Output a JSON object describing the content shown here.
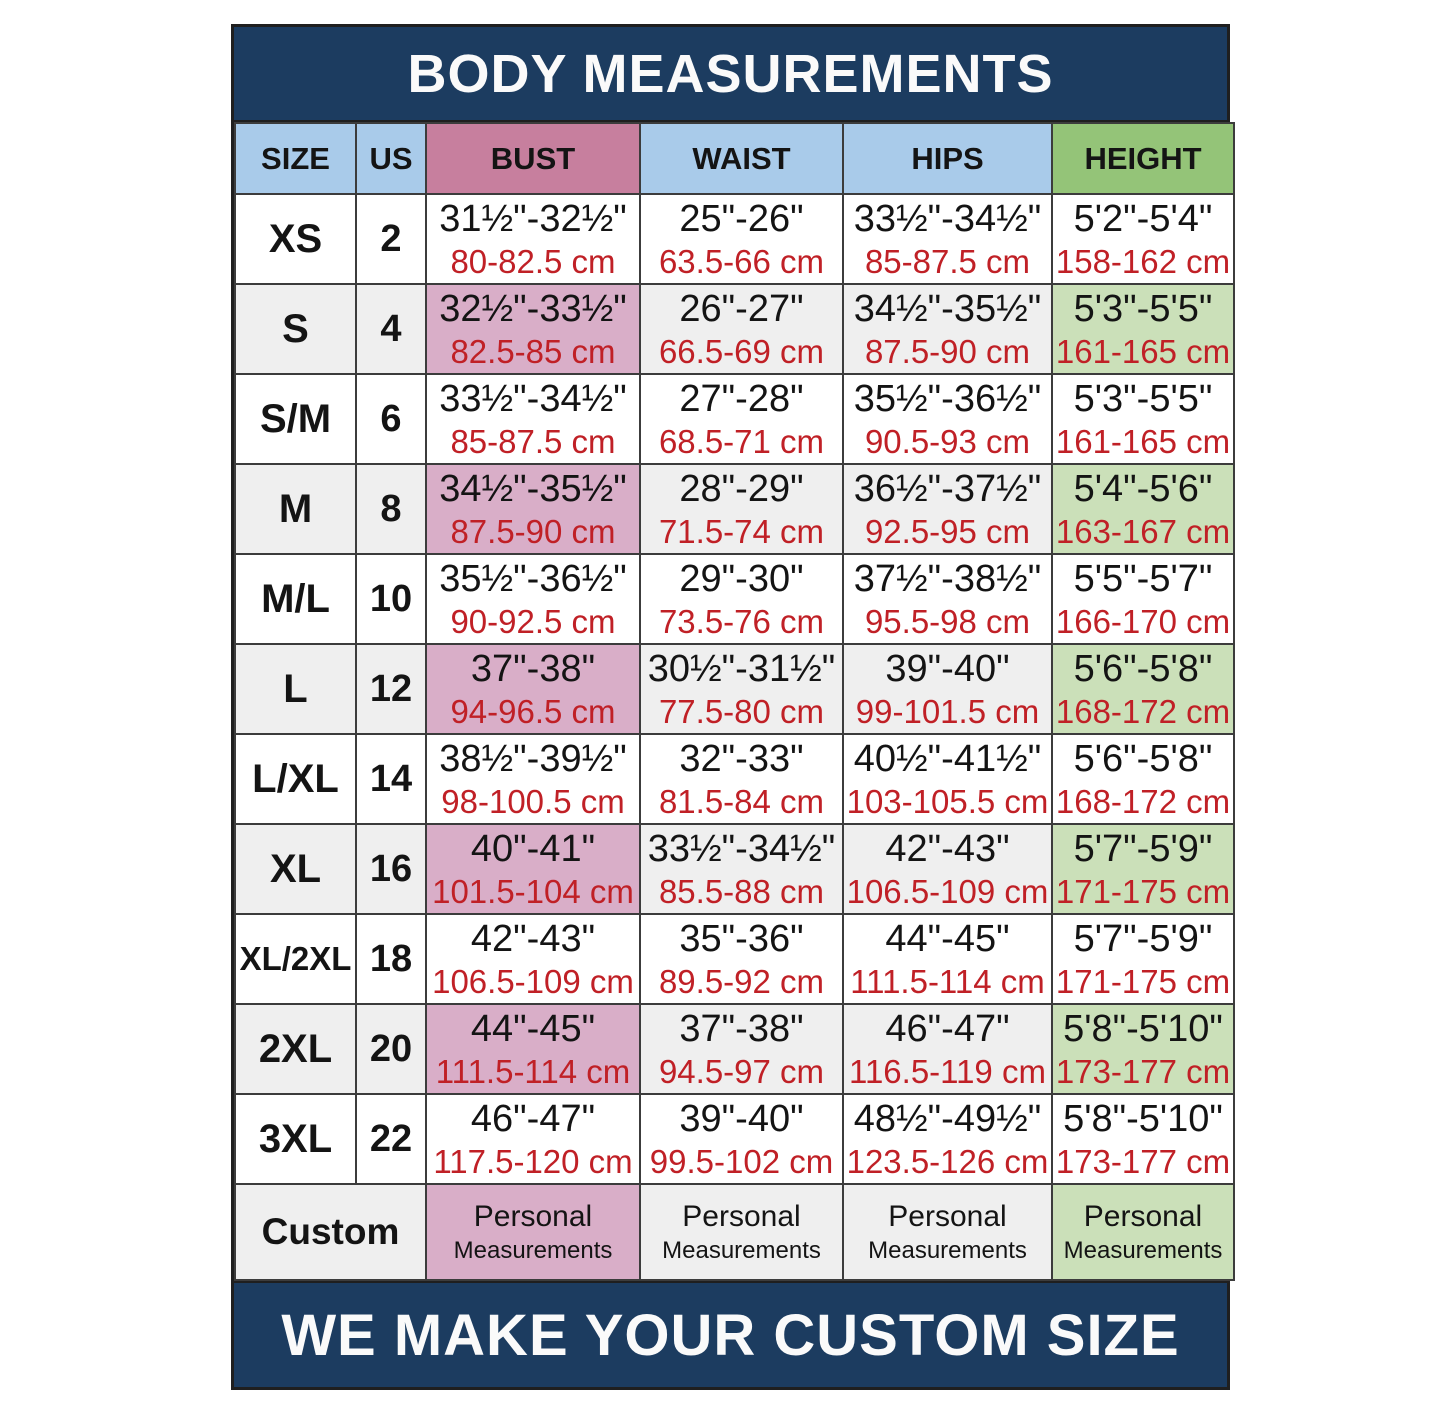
{
  "title": "BODY MEASUREMENTS",
  "footer": "WE MAKE YOUR CUSTOM SIZE",
  "colors": {
    "navy": "#1c3c60",
    "header_blue": "#a9cbea",
    "header_pink": "#c77f9e",
    "header_green": "#94c478",
    "bust_light": "#eed9e2",
    "bust_dark": "#d9aec8",
    "height_light": "#dcead1",
    "height_dark": "#cbe0b9",
    "row_gray": "#efefef",
    "cm_red": "#c02026",
    "ink": "#141414"
  },
  "chart_data": {
    "type": "table",
    "columns": [
      "SIZE",
      "US",
      "BUST",
      "WAIST",
      "HIPS",
      "HEIGHT"
    ],
    "rows": [
      {
        "size": "XS",
        "us": "2",
        "bust_in": "31½\"-32½\"",
        "bust_cm": "80-82.5 cm",
        "waist_in": "25\"-26\"",
        "waist_cm": "63.5-66 cm",
        "hips_in": "33½\"-34½\"",
        "hips_cm": "85-87.5 cm",
        "height_in": "5'2\"-5'4\"",
        "height_cm": "158-162 cm"
      },
      {
        "size": "S",
        "us": "4",
        "bust_in": "32½\"-33½\"",
        "bust_cm": "82.5-85 cm",
        "waist_in": "26\"-27\"",
        "waist_cm": "66.5-69 cm",
        "hips_in": "34½\"-35½\"",
        "hips_cm": "87.5-90 cm",
        "height_in": "5'3\"-5'5\"",
        "height_cm": "161-165 cm"
      },
      {
        "size": "S/M",
        "us": "6",
        "bust_in": "33½\"-34½\"",
        "bust_cm": "85-87.5 cm",
        "waist_in": "27\"-28\"",
        "waist_cm": "68.5-71 cm",
        "hips_in": "35½\"-36½\"",
        "hips_cm": "90.5-93 cm",
        "height_in": "5'3\"-5'5\"",
        "height_cm": "161-165 cm"
      },
      {
        "size": "M",
        "us": "8",
        "bust_in": "34½\"-35½\"",
        "bust_cm": "87.5-90 cm",
        "waist_in": "28\"-29\"",
        "waist_cm": "71.5-74 cm",
        "hips_in": "36½\"-37½\"",
        "hips_cm": "92.5-95 cm",
        "height_in": "5'4\"-5'6\"",
        "height_cm": "163-167 cm"
      },
      {
        "size": "M/L",
        "us": "10",
        "bust_in": "35½\"-36½\"",
        "bust_cm": "90-92.5 cm",
        "waist_in": "29\"-30\"",
        "waist_cm": "73.5-76 cm",
        "hips_in": "37½\"-38½\"",
        "hips_cm": "95.5-98 cm",
        "height_in": "5'5\"-5'7\"",
        "height_cm": "166-170 cm"
      },
      {
        "size": "L",
        "us": "12",
        "bust_in": "37\"-38\"",
        "bust_cm": "94-96.5 cm",
        "waist_in": "30½\"-31½\"",
        "waist_cm": "77.5-80 cm",
        "hips_in": "39\"-40\"",
        "hips_cm": "99-101.5 cm",
        "height_in": "5'6\"-5'8\"",
        "height_cm": "168-172 cm"
      },
      {
        "size": "L/XL",
        "us": "14",
        "bust_in": "38½\"-39½\"",
        "bust_cm": "98-100.5 cm",
        "waist_in": "32\"-33\"",
        "waist_cm": "81.5-84 cm",
        "hips_in": "40½\"-41½\"",
        "hips_cm": "103-105.5 cm",
        "height_in": "5'6\"-5'8\"",
        "height_cm": "168-172 cm"
      },
      {
        "size": "XL",
        "us": "16",
        "bust_in": "40\"-41\"",
        "bust_cm": "101.5-104 cm",
        "waist_in": "33½\"-34½\"",
        "waist_cm": "85.5-88 cm",
        "hips_in": "42\"-43\"",
        "hips_cm": "106.5-109 cm",
        "height_in": "5'7\"-5'9\"",
        "height_cm": "171-175 cm"
      },
      {
        "size": "XL/2XL",
        "us": "18",
        "bust_in": "42\"-43\"",
        "bust_cm": "106.5-109 cm",
        "waist_in": "35\"-36\"",
        "waist_cm": "89.5-92 cm",
        "hips_in": "44\"-45\"",
        "hips_cm": "111.5-114 cm",
        "height_in": "5'7\"-5'9\"",
        "height_cm": "171-175 cm"
      },
      {
        "size": "2XL",
        "us": "20",
        "bust_in": "44\"-45\"",
        "bust_cm": "111.5-114 cm",
        "waist_in": "37\"-38\"",
        "waist_cm": "94.5-97 cm",
        "hips_in": "46\"-47\"",
        "hips_cm": "116.5-119 cm",
        "height_in": "5'8\"-5'10\"",
        "height_cm": "173-177 cm"
      },
      {
        "size": "3XL",
        "us": "22",
        "bust_in": "46\"-47\"",
        "bust_cm": "117.5-120 cm",
        "waist_in": "39\"-40\"",
        "waist_cm": "99.5-102 cm",
        "hips_in": "48½\"-49½\"",
        "hips_cm": "123.5-126 cm",
        "height_in": "5'8\"-5'10\"",
        "height_cm": "173-177 cm"
      }
    ],
    "custom_row": {
      "label": "Custom",
      "line1": "Personal",
      "line2": "Measurements"
    }
  }
}
